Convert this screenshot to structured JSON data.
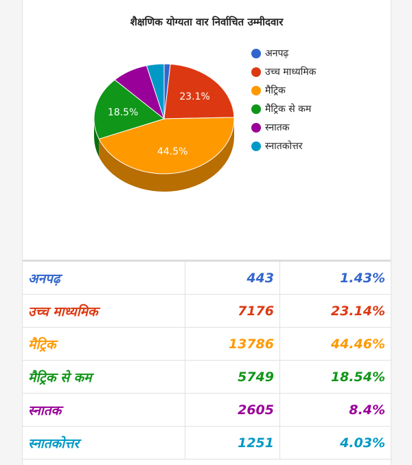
{
  "chart_data": {
    "type": "pie",
    "title": "शैक्षणिक योग्यता वार निर्वाचित उम्मीदवार",
    "categories": [
      "अनपढ़",
      "उच्च माध्यमिक",
      "मैट्रिक",
      "मैट्रिक से कम",
      "स्नातक",
      "स्नातकोत्तर"
    ],
    "values": [
      443,
      7176,
      13786,
      5749,
      2605,
      1251
    ],
    "percent_labels": [
      "",
      "23.1%",
      "44.5%",
      "18.5%",
      "",
      ""
    ],
    "colors": [
      "#3366cc",
      "#dc3912",
      "#ff9900",
      "#109618",
      "#990099",
      "#0099c6"
    ],
    "legend_position": "right",
    "style": "3d"
  },
  "table": {
    "rows": [
      {
        "name": "अनपढ़",
        "count": "443",
        "percent": "1.43%"
      },
      {
        "name": "उच्च माध्यमिक",
        "count": "7176",
        "percent": "23.14%"
      },
      {
        "name": "मैट्रिक",
        "count": "13786",
        "percent": "44.46%"
      },
      {
        "name": "मैट्रिक से कम",
        "count": "5749",
        "percent": "18.54%"
      },
      {
        "name": "स्नातक",
        "count": "2605",
        "percent": "8.4%"
      },
      {
        "name": "स्नातकोत्तर",
        "count": "1251",
        "percent": "4.03%"
      }
    ]
  }
}
